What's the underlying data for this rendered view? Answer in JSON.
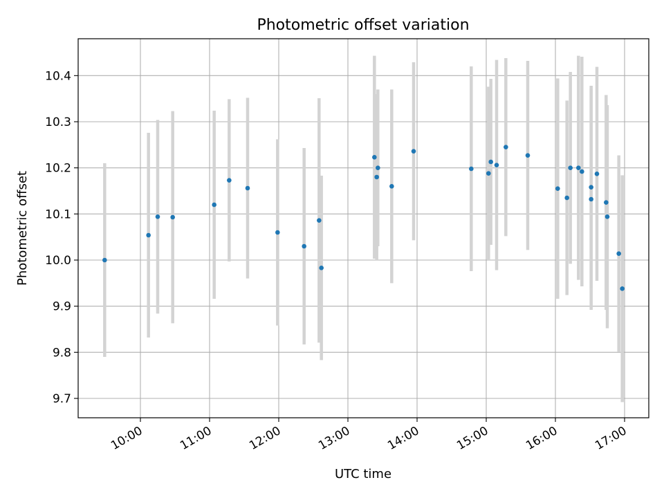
{
  "chart_data": {
    "type": "scatter",
    "title": "Photometric offset variation",
    "xlabel": "UTC time",
    "ylabel": "Photometric offset",
    "grid": true,
    "x_ticks": [
      "10:00",
      "11:00",
      "12:00",
      "13:00",
      "14:00",
      "15:00",
      "16:00",
      "17:00"
    ],
    "y_ticks": [
      "9.7",
      "9.8",
      "9.9",
      "10.0",
      "10.1",
      "10.2",
      "10.3",
      "10.4"
    ],
    "xlim": [
      "09:06",
      "17:21"
    ],
    "ylim": [
      9.658,
      10.48
    ],
    "series": [
      {
        "marker_color": "#1f77b4",
        "errorbar_color": "#d3d3d3",
        "points": [
          {
            "x": "09:29",
            "y": 10.0,
            "err": 0.21
          },
          {
            "x": "10:07",
            "y": 10.054,
            "err": 0.222
          },
          {
            "x": "10:15",
            "y": 10.094,
            "err": 0.21
          },
          {
            "x": "10:28",
            "y": 10.093,
            "err": 0.23
          },
          {
            "x": "11:04",
            "y": 10.12,
            "err": 0.204
          },
          {
            "x": "11:17",
            "y": 10.173,
            "err": 0.176
          },
          {
            "x": "11:33",
            "y": 10.156,
            "err": 0.196
          },
          {
            "x": "11:59",
            "y": 10.06,
            "err": 0.202
          },
          {
            "x": "12:22",
            "y": 10.03,
            "err": 0.213
          },
          {
            "x": "12:35",
            "y": 10.086,
            "err": 0.265
          },
          {
            "x": "12:37",
            "y": 9.983,
            "err": 0.2
          },
          {
            "x": "13:23",
            "y": 10.223,
            "err": 0.22
          },
          {
            "x": "13:26",
            "y": 10.2,
            "err": 0.17
          },
          {
            "x": "13:25",
            "y": 10.18,
            "err": 0.18
          },
          {
            "x": "13:38",
            "y": 10.16,
            "err": 0.21
          },
          {
            "x": "13:57",
            "y": 10.236,
            "err": 0.193
          },
          {
            "x": "14:47",
            "y": 10.198,
            "err": 0.222
          },
          {
            "x": "15:02",
            "y": 10.188,
            "err": 0.188
          },
          {
            "x": "15:04",
            "y": 10.213,
            "err": 0.18
          },
          {
            "x": "15:09",
            "y": 10.206,
            "err": 0.228
          },
          {
            "x": "15:17",
            "y": 10.245,
            "err": 0.193
          },
          {
            "x": "15:36",
            "y": 10.227,
            "err": 0.205
          },
          {
            "x": "16:02",
            "y": 10.155,
            "err": 0.239
          },
          {
            "x": "16:10",
            "y": 10.135,
            "err": 0.211
          },
          {
            "x": "16:13",
            "y": 10.2,
            "err": 0.208
          },
          {
            "x": "16:20",
            "y": 10.2,
            "err": 0.243
          },
          {
            "x": "16:23",
            "y": 10.192,
            "err": 0.249
          },
          {
            "x": "16:31",
            "y": 10.158,
            "err": 0.22
          },
          {
            "x": "16:31",
            "y": 10.132,
            "err": 0.24
          },
          {
            "x": "16:36",
            "y": 10.187,
            "err": 0.232
          },
          {
            "x": "16:44",
            "y": 10.125,
            "err": 0.233
          },
          {
            "x": "16:45",
            "y": 10.094,
            "err": 0.242
          },
          {
            "x": "16:55",
            "y": 10.014,
            "err": 0.213
          },
          {
            "x": "16:58",
            "y": 9.938,
            "err": 0.246
          }
        ]
      }
    ]
  }
}
